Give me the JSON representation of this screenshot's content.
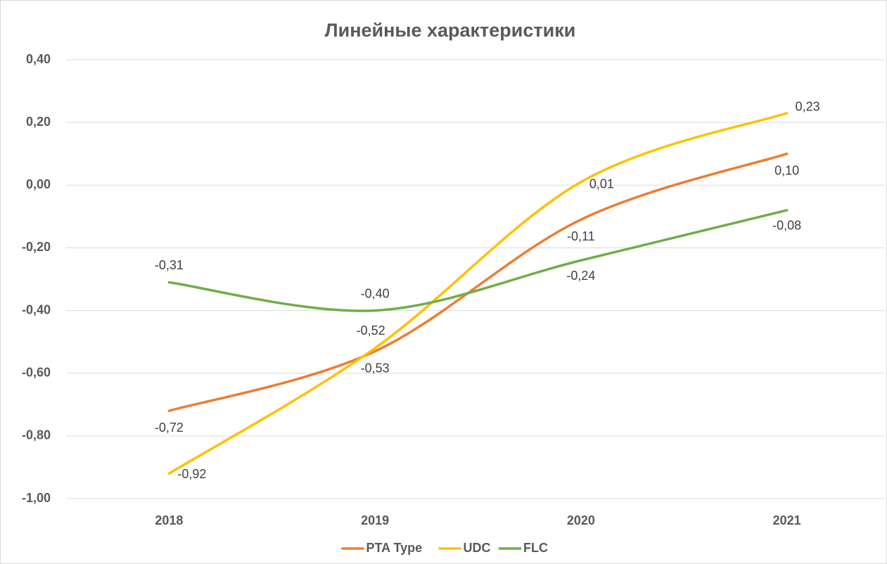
{
  "chart_data": {
    "type": "line",
    "title": "Линейные характеристики",
    "categories": [
      "2018",
      "2019",
      "2020",
      "2021"
    ],
    "series": [
      {
        "name": "PTA Type",
        "color": "#ed7d31",
        "values": [
          -0.72,
          -0.53,
          -0.11,
          0.1
        ],
        "value_labels": [
          "-0,72",
          "-0,53",
          "-0,11",
          "0,10"
        ]
      },
      {
        "name": "UDC",
        "color": "#ffc000",
        "values": [
          -0.92,
          -0.52,
          0.01,
          0.23
        ],
        "value_labels": [
          "-0,92",
          "-0,52",
          "0,01",
          "0,23"
        ]
      },
      {
        "name": "FLC",
        "color": "#70ad47",
        "values": [
          -0.31,
          -0.4,
          -0.24,
          -0.08
        ],
        "value_labels": [
          "-0,31",
          "-0,40",
          "-0,24",
          "-0,08"
        ]
      }
    ],
    "ylim": [
      -1.0,
      0.4
    ],
    "yticks": [
      {
        "value": -1.0,
        "label": "-1,00"
      },
      {
        "value": -0.8,
        "label": "-0,80"
      },
      {
        "value": -0.6,
        "label": "-0,60"
      },
      {
        "value": -0.4,
        "label": "-0,40"
      },
      {
        "value": -0.2,
        "label": "-0,20"
      },
      {
        "value": 0,
        "label": "0,00"
      },
      {
        "value": 0.2,
        "label": "0,20"
      },
      {
        "value": 0.4,
        "label": "0,40"
      }
    ],
    "grid": true,
    "smooth": true,
    "legend": "bottom"
  }
}
